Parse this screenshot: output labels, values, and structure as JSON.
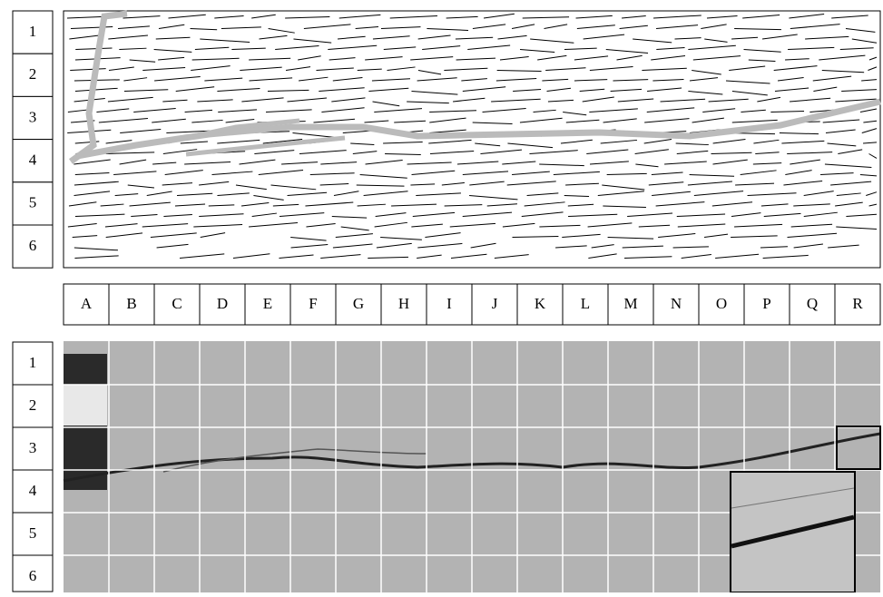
{
  "top_rows": [
    "1",
    "2",
    "3",
    "4",
    "5",
    "6"
  ],
  "columns": [
    "A",
    "B",
    "C",
    "D",
    "E",
    "F",
    "G",
    "H",
    "I",
    "J",
    "K",
    "L",
    "M",
    "N",
    "O",
    "P",
    "Q",
    "R"
  ],
  "bottom_rows": [
    "1",
    "2",
    "3",
    "4",
    "5",
    "6"
  ]
}
